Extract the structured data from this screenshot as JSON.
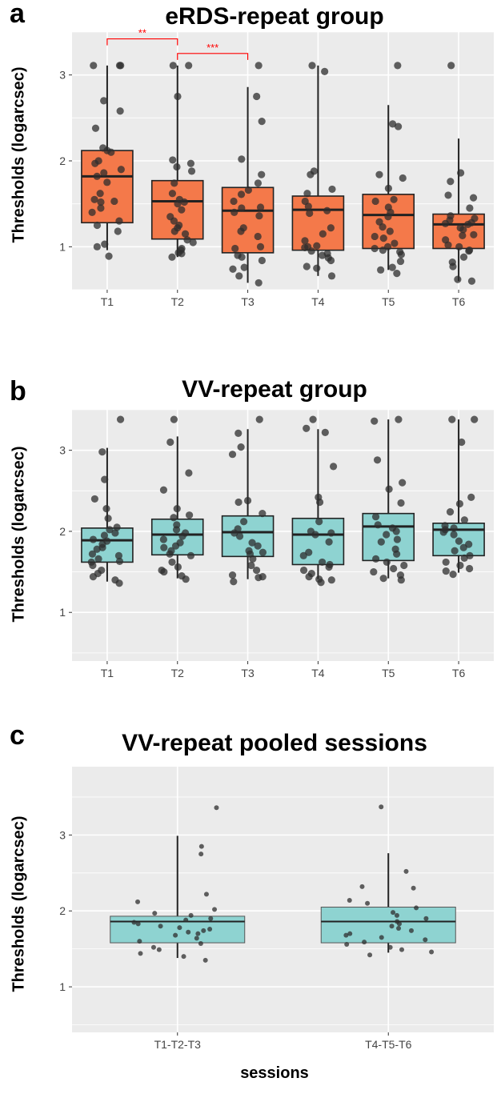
{
  "panels": [
    {
      "letter": "a",
      "title": "eRDS-repeat group",
      "ylabel": "Thresholds (logarcsec)"
    },
    {
      "letter": "b",
      "title": "VV-repeat group",
      "ylabel": "Thresholds (logarcsec)"
    },
    {
      "letter": "c",
      "title": "VV-repeat pooled sessions",
      "ylabel": "Thresholds (logarcsec)",
      "xlabel": "sessions"
    }
  ],
  "colors": {
    "panel_background": "#ebebeb",
    "grid": "#ffffff",
    "box_a": "#f4794a",
    "box_bc": "#8ed3d1",
    "point": "#2e2e2e",
    "significance": "#ff0000"
  },
  "chart_data": [
    {
      "type": "box",
      "title": "eRDS-repeat group",
      "xlabel": "",
      "ylabel": "Thresholds (logarcsec)",
      "categories": [
        "T1",
        "T2",
        "T3",
        "T4",
        "T5",
        "T6"
      ],
      "yticks": [
        1,
        2,
        3
      ],
      "ylim": [
        0.5,
        3.5
      ],
      "grid": true,
      "boxes": [
        {
          "q1": 1.28,
          "median": 1.82,
          "q3": 2.12,
          "whisker_low": 0.96,
          "whisker_high": 3.11
        },
        {
          "q1": 1.09,
          "median": 1.53,
          "q3": 1.77,
          "whisker_low": 0.88,
          "whisker_high": 3.11
        },
        {
          "q1": 0.93,
          "median": 1.42,
          "q3": 1.69,
          "whisker_low": 0.58,
          "whisker_high": 2.86
        },
        {
          "q1": 0.96,
          "median": 1.43,
          "q3": 1.59,
          "whisker_low": 0.66,
          "whisker_high": 3.11
        },
        {
          "q1": 0.98,
          "median": 1.37,
          "q3": 1.61,
          "whisker_low": 0.73,
          "whisker_high": 2.65
        },
        {
          "q1": 0.98,
          "median": 1.26,
          "q3": 1.38,
          "whisker_low": 0.6,
          "whisker_high": 2.26
        }
      ],
      "points": [
        [
          3.11,
          3.11,
          3.11,
          2.7,
          2.58,
          2.38,
          2.15,
          2.12,
          2.1,
          2.0,
          1.97,
          1.9,
          1.86,
          1.82,
          1.75,
          1.62,
          1.55,
          1.53,
          1.52,
          1.45,
          1.4,
          1.3,
          1.25,
          1.18,
          1.03,
          1.0,
          0.89
        ],
        [
          3.11,
          3.11,
          2.75,
          2.01,
          1.97,
          1.93,
          1.88,
          1.74,
          1.62,
          1.55,
          1.52,
          1.5,
          1.43,
          1.35,
          1.3,
          1.25,
          1.22,
          1.18,
          1.15,
          1.08,
          1.05,
          0.98,
          0.96,
          0.93,
          0.92,
          0.88
        ],
        [
          3.11,
          2.75,
          2.46,
          2.02,
          1.84,
          1.74,
          1.66,
          1.61,
          1.53,
          1.46,
          1.45,
          1.4,
          1.36,
          1.22,
          1.18,
          1.12,
          1.0,
          0.98,
          0.9,
          0.88,
          0.84,
          0.76,
          0.74,
          0.66,
          0.58
        ],
        [
          3.11,
          3.04,
          1.88,
          1.84,
          1.67,
          1.62,
          1.53,
          1.47,
          1.42,
          1.39,
          1.22,
          1.15,
          1.07,
          1.01,
          1.0,
          0.99,
          0.95,
          0.92,
          0.9,
          0.87,
          0.84,
          0.77,
          0.75,
          0.66
        ],
        [
          3.11,
          2.43,
          2.4,
          1.84,
          1.8,
          1.68,
          1.55,
          1.53,
          1.46,
          1.4,
          1.35,
          1.29,
          1.23,
          1.18,
          1.12,
          1.1,
          1.04,
          1.0,
          0.98,
          0.96,
          0.94,
          0.91,
          0.83,
          0.76,
          0.73,
          0.69
        ],
        [
          3.11,
          1.86,
          1.76,
          1.6,
          1.57,
          1.45,
          1.36,
          1.33,
          1.31,
          1.28,
          1.27,
          1.26,
          1.22,
          1.2,
          1.14,
          1.13,
          1.08,
          1.02,
          1.0,
          0.96,
          0.95,
          0.88,
          0.82,
          0.77,
          0.62,
          0.6
        ]
      ],
      "significance": [
        {
          "from": "T1",
          "to": "T2",
          "y": 3.42,
          "label": "**"
        },
        {
          "from": "T2",
          "to": "T3",
          "y": 3.25,
          "label": "***"
        }
      ]
    },
    {
      "type": "box",
      "title": "VV-repeat group",
      "xlabel": "",
      "ylabel": "Thresholds (logarcsec)",
      "categories": [
        "T1",
        "T2",
        "T3",
        "T4",
        "T5",
        "T6"
      ],
      "yticks": [
        1,
        2,
        3
      ],
      "ylim": [
        0.4,
        3.5
      ],
      "grid": true,
      "boxes": [
        {
          "q1": 1.62,
          "median": 1.89,
          "q3": 2.04,
          "whisker_low": 1.38,
          "whisker_high": 3.03
        },
        {
          "q1": 1.71,
          "median": 1.96,
          "q3": 2.15,
          "whisker_low": 1.42,
          "whisker_high": 3.17
        },
        {
          "q1": 1.69,
          "median": 1.99,
          "q3": 2.19,
          "whisker_low": 1.41,
          "whisker_high": 3.26
        },
        {
          "q1": 1.59,
          "median": 1.96,
          "q3": 2.16,
          "whisker_low": 1.41,
          "whisker_high": 3.26
        },
        {
          "q1": 1.64,
          "median": 2.06,
          "q3": 2.22,
          "whisker_low": 1.42,
          "whisker_high": 3.38
        },
        {
          "q1": 1.7,
          "median": 2.02,
          "q3": 2.1,
          "whisker_low": 1.49,
          "whisker_high": 3.38
        }
      ],
      "points": [
        [
          3.38,
          2.98,
          2.64,
          2.4,
          2.28,
          2.16,
          2.05,
          2.02,
          1.98,
          1.95,
          1.9,
          1.88,
          1.84,
          1.8,
          1.78,
          1.72,
          1.7,
          1.66,
          1.63,
          1.62,
          1.58,
          1.52,
          1.48,
          1.44,
          1.4,
          1.36
        ],
        [
          3.38,
          3.1,
          2.72,
          2.51,
          2.28,
          2.2,
          2.17,
          2.08,
          2.02,
          1.98,
          1.94,
          1.9,
          1.86,
          1.82,
          1.8,
          1.76,
          1.72,
          1.7,
          1.62,
          1.56,
          1.52,
          1.5,
          1.45,
          1.41
        ],
        [
          3.38,
          3.21,
          3.04,
          2.95,
          2.38,
          2.36,
          2.22,
          2.12,
          2.03,
          1.98,
          1.94,
          1.86,
          1.82,
          1.76,
          1.74,
          1.72,
          1.66,
          1.58,
          1.52,
          1.46,
          1.44,
          1.43,
          1.38
        ],
        [
          3.38,
          3.27,
          3.22,
          2.8,
          2.42,
          2.36,
          2.12,
          2.0,
          1.98,
          1.96,
          1.87,
          1.74,
          1.7,
          1.62,
          1.59,
          1.56,
          1.52,
          1.48,
          1.44,
          1.41,
          1.4,
          1.37
        ],
        [
          3.38,
          3.36,
          2.88,
          2.6,
          2.52,
          2.35,
          2.18,
          2.08,
          2.04,
          2.0,
          1.96,
          1.9,
          1.87,
          1.78,
          1.72,
          1.66,
          1.62,
          1.58,
          1.54,
          1.5,
          1.46,
          1.42,
          1.4
        ],
        [
          3.38,
          3.38,
          3.1,
          2.42,
          2.34,
          2.24,
          2.14,
          2.07,
          2.04,
          2.02,
          1.99,
          1.96,
          1.88,
          1.84,
          1.8,
          1.76,
          1.7,
          1.67,
          1.62,
          1.58,
          1.54,
          1.51,
          1.47
        ]
      ],
      "significance": []
    },
    {
      "type": "box",
      "title": "VV-repeat pooled sessions",
      "xlabel": "sessions",
      "ylabel": "Thresholds (logarcsec)",
      "categories": [
        "T1-T2-T3",
        "T4-T5-T6"
      ],
      "yticks": [
        1,
        2,
        3
      ],
      "ylim": [
        0.4,
        3.9
      ],
      "grid": true,
      "boxes": [
        {
          "q1": 1.58,
          "median": 1.86,
          "q3": 1.93,
          "whisker_low": 1.38,
          "whisker_high": 2.99
        },
        {
          "q1": 1.58,
          "median": 1.86,
          "q3": 2.05,
          "whisker_low": 1.45,
          "whisker_high": 2.76
        }
      ],
      "points": [
        [
          3.36,
          2.85,
          2.75,
          2.22,
          2.12,
          2.02,
          1.97,
          1.94,
          1.9,
          1.88,
          1.85,
          1.83,
          1.8,
          1.78,
          1.76,
          1.74,
          1.72,
          1.7,
          1.68,
          1.64,
          1.6,
          1.57,
          1.52,
          1.49,
          1.44,
          1.4,
          1.35
        ],
        [
          3.37,
          2.52,
          2.32,
          2.3,
          2.14,
          2.1,
          2.04,
          1.98,
          1.94,
          1.9,
          1.86,
          1.83,
          1.8,
          1.77,
          1.74,
          1.7,
          1.68,
          1.65,
          1.62,
          1.59,
          1.56,
          1.52,
          1.49,
          1.46,
          1.42
        ]
      ],
      "significance": []
    }
  ]
}
